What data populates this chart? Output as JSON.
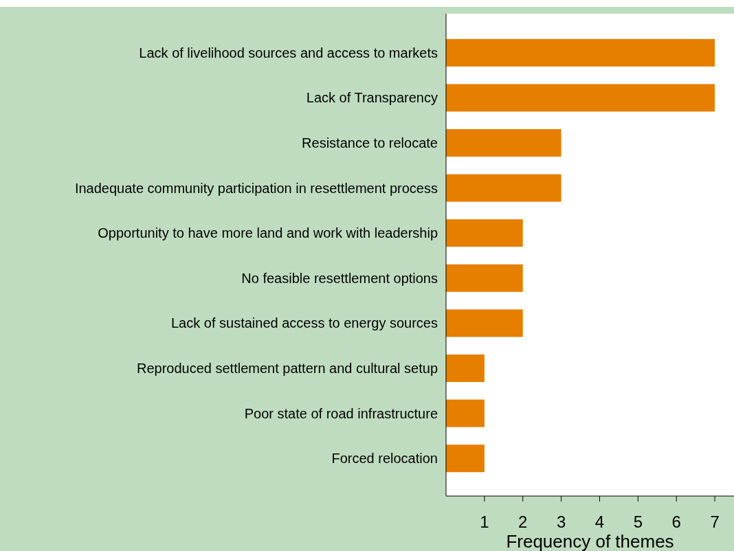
{
  "chart_data": {
    "type": "bar",
    "orientation": "horizontal",
    "xlabel": "Frequency of themes",
    "categories": [
      "Lack of livelihood sources and access to markets",
      "Lack of Transparency",
      "Resistance to relocate",
      "Inadequate community participation in resettlement process",
      "Opportunity to have more land and work with leadership",
      "No feasible resettlement options",
      "Lack of sustained access to energy sources",
      "Reproduced settlement pattern and cultural setup",
      "Poor state of road infrastructure",
      "Forced relocation"
    ],
    "values": [
      7,
      7,
      3,
      3,
      2,
      2,
      2,
      1,
      1,
      1
    ],
    "color": "#e67e00",
    "xlim": [
      0,
      7.5
    ],
    "xticks": [
      1,
      2,
      3,
      4,
      5,
      6,
      7
    ]
  }
}
